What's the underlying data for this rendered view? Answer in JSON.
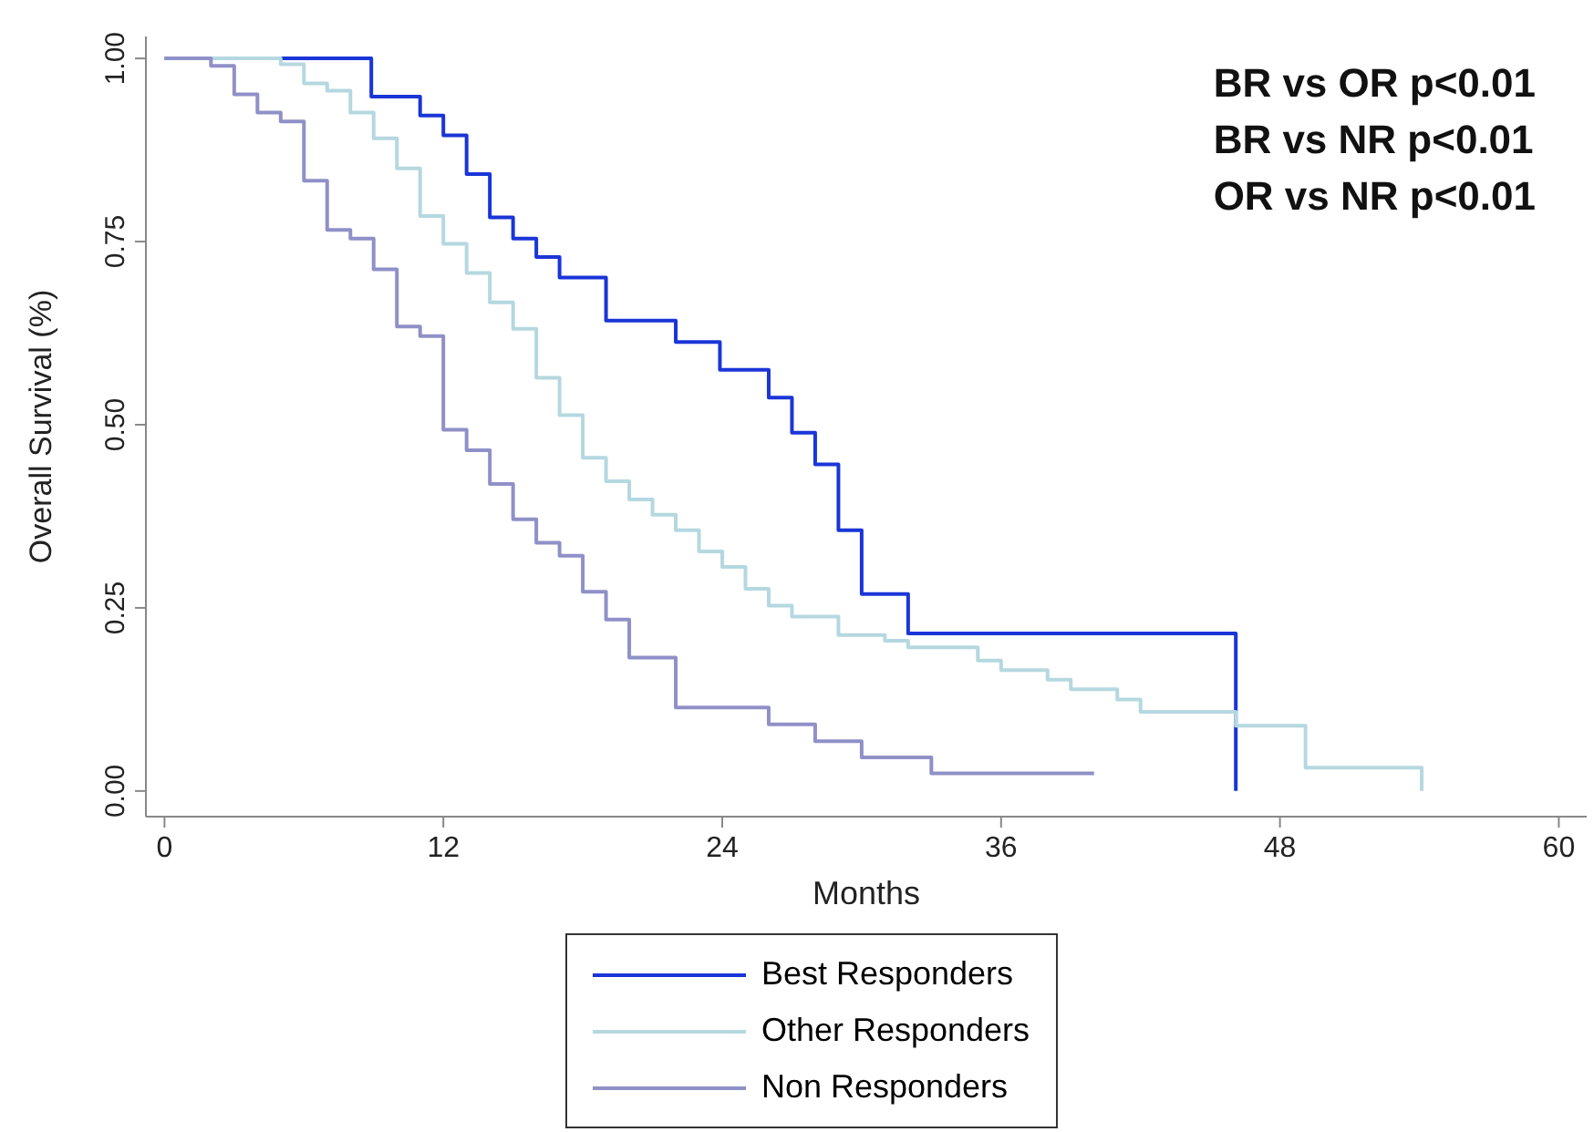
{
  "chart_data": {
    "type": "step",
    "xlabel": "Months",
    "ylabel": "Overall Survival (%)",
    "xlim": [
      -0.8,
      61.2
    ],
    "xticks": [
      0,
      12,
      24,
      36,
      48,
      60
    ],
    "ylim": [
      -0.035,
      1.03
    ],
    "yticks": [
      {
        "value": 0,
        "label": "0.00"
      },
      {
        "value": 0.25,
        "label": "0.25"
      },
      {
        "value": 0.5,
        "label": "0.50"
      },
      {
        "value": 0.75,
        "label": "0.75"
      },
      {
        "value": 1,
        "label": "1.00"
      }
    ],
    "grid": false,
    "legend": "bottom",
    "marker": "none",
    "line_style": "solid",
    "annotations": [
      "BR vs OR p<0.01",
      "BR vs NR p<0.01",
      "OR vs NR p<0.01"
    ],
    "series": [
      {
        "name": "Best Responders",
        "color": "#1a35d8",
        "x": [
          0,
          8.9,
          11,
          12,
          13,
          14,
          15,
          16,
          17,
          19,
          22,
          23.9,
          26,
          27,
          28,
          29,
          30,
          32,
          46.1
        ],
        "values": [
          1,
          0.948,
          0.922,
          0.895,
          0.842,
          0.783,
          0.754,
          0.729,
          0.701,
          0.642,
          0.613,
          0.575,
          0.537,
          0.489,
          0.446,
          0.356,
          0.269,
          0.215,
          0
        ]
      },
      {
        "name": "Other Responders",
        "color": "#b5d8e0",
        "x": [
          0,
          5,
          6,
          7,
          8,
          9,
          10,
          11,
          12,
          13,
          14,
          15,
          16,
          17,
          18,
          19,
          20,
          21,
          22,
          23,
          24,
          25,
          26,
          27,
          29,
          31,
          32,
          35,
          36,
          38,
          39,
          41,
          42,
          46.1,
          49.1,
          54.1
        ],
        "values": [
          1,
          0.992,
          0.966,
          0.956,
          0.926,
          0.891,
          0.85,
          0.785,
          0.747,
          0.707,
          0.667,
          0.631,
          0.564,
          0.513,
          0.455,
          0.423,
          0.398,
          0.377,
          0.356,
          0.327,
          0.306,
          0.276,
          0.253,
          0.238,
          0.213,
          0.205,
          0.196,
          0.178,
          0.165,
          0.152,
          0.139,
          0.125,
          0.108,
          0.089,
          0.032,
          0
        ]
      },
      {
        "name": "Non Responders",
        "color": "#9090c8",
        "x": [
          0,
          2,
          3,
          4,
          5,
          6,
          7,
          8,
          9,
          10,
          11,
          12,
          13,
          14,
          15,
          16,
          17,
          18,
          19,
          20,
          22,
          26,
          28,
          30,
          33,
          40
        ],
        "values": [
          1,
          0.99,
          0.951,
          0.926,
          0.914,
          0.833,
          0.766,
          0.754,
          0.712,
          0.634,
          0.621,
          0.493,
          0.465,
          0.419,
          0.371,
          0.339,
          0.321,
          0.272,
          0.234,
          0.182,
          0.114,
          0.091,
          0.068,
          0.046,
          0.024,
          0.024
        ]
      }
    ]
  }
}
